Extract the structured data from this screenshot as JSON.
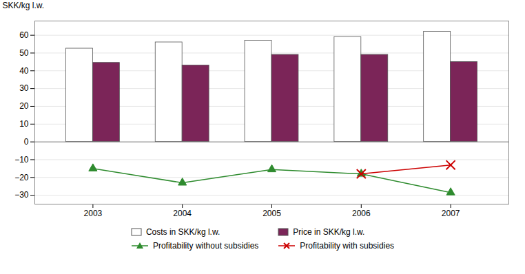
{
  "chart_data": {
    "type": "bar",
    "y_label": "SKK/kg l.w.",
    "categories": [
      "2003",
      "2004",
      "2005",
      "2006",
      "2007"
    ],
    "series": [
      {
        "name": "Costs in SKK/kg l.w.",
        "type": "bar",
        "color": "#ffffff",
        "values": [
          52.5,
          56.0,
          57.0,
          59.0,
          62.0
        ]
      },
      {
        "name": "Price in SKK/kg l.w.",
        "type": "bar",
        "color": "#7b2558",
        "values": [
          44.5,
          43.0,
          49.0,
          49.0,
          45.0
        ]
      },
      {
        "name": "Profitability without subsidies",
        "type": "line",
        "color": "#2e8b2e",
        "marker": "triangle",
        "values": [
          -15.0,
          -23.0,
          -15.5,
          -18.0,
          -28.5
        ]
      },
      {
        "name": "Profitability with subsidies",
        "type": "line",
        "color": "#cc0000",
        "marker": "x",
        "values": [
          null,
          null,
          null,
          -18.0,
          -13.0
        ]
      }
    ],
    "ylim": [
      -35,
      68
    ],
    "yticks": [
      60,
      50,
      40,
      30,
      20,
      10,
      0,
      -10,
      -20,
      -30
    ],
    "grid": true,
    "legend": "bottom"
  }
}
